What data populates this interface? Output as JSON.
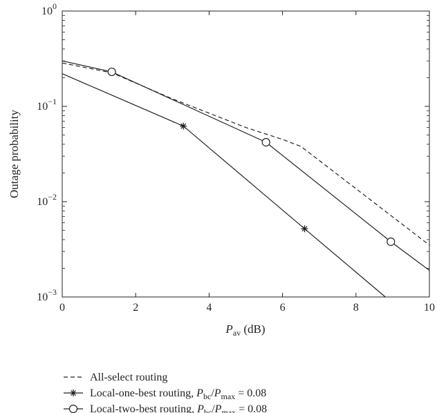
{
  "chart_data": {
    "type": "line",
    "ylabel": "Outage probability",
    "xlabel": {
      "main": "P",
      "sub": "av",
      "unit": " (dB)"
    },
    "xlim": [
      0,
      10
    ],
    "ylim": [
      0.001,
      1
    ],
    "yscale": "log",
    "grid": false,
    "legend_placement": "bottom",
    "x_ticks": [
      {
        "value": 0,
        "label": "0"
      },
      {
        "value": 2,
        "label": "2"
      },
      {
        "value": 4,
        "label": "4"
      },
      {
        "value": 6,
        "label": "6"
      },
      {
        "value": 8,
        "label": "8"
      },
      {
        "value": 10,
        "label": "10"
      }
    ],
    "y_ticks": [
      {
        "value": 1,
        "base": "10",
        "exp": "0"
      },
      {
        "value": 0.1,
        "base": "10",
        "exp": "−1"
      },
      {
        "value": 0.01,
        "base": "10",
        "exp": "−2"
      },
      {
        "value": 0.001,
        "base": "10",
        "exp": "−3"
      }
    ],
    "series": [
      {
        "name": "All-select routing",
        "style": "dashed",
        "marker": "none",
        "color": "#231f20",
        "x": [
          0,
          1.35,
          3.0,
          5.0,
          6.0,
          6.5,
          10
        ],
        "y": [
          0.285,
          0.225,
          0.12,
          0.06,
          0.045,
          0.038,
          0.0035
        ],
        "markers_x": []
      },
      {
        "name": "Local-one-best routing",
        "style": "solid",
        "marker": "star",
        "color": "#231f20",
        "x": [
          0,
          3.3,
          6.6,
          8.8
        ],
        "y": [
          0.22,
          0.062,
          0.0052,
          0.001
        ],
        "markers_x": [
          3.3,
          6.6
        ]
      },
      {
        "name": "Local-two-best routing",
        "style": "solid",
        "marker": "circle",
        "color": "#231f20",
        "x": [
          0,
          1.35,
          5.55,
          8.95,
          10
        ],
        "y": [
          0.3,
          0.23,
          0.042,
          0.0038,
          0.0019
        ],
        "markers_x": [
          1.35,
          5.55,
          8.95
        ]
      }
    ],
    "legend": [
      {
        "text": "All-select routing"
      },
      {
        "text": "Local-one-best routing, ",
        "ratio": {
          "p1": "P",
          "s1": "bc",
          "p2": "P",
          "s2": "max",
          "value": " = 0.08"
        }
      },
      {
        "text": "Local-two-best routing, ",
        "ratio": {
          "p1": "P",
          "s1": "bc",
          "p2": "P",
          "s2": "max",
          "value": " = 0.08"
        }
      }
    ]
  }
}
